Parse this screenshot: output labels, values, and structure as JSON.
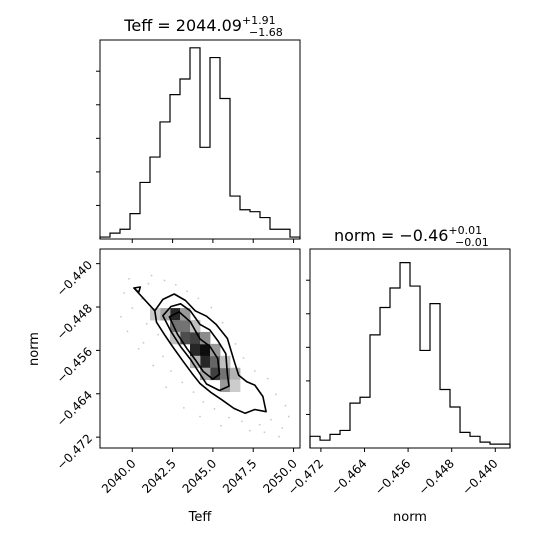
{
  "figure": {
    "panels": [
      "hist-teff",
      "hist-norm",
      "scatter-teff-norm"
    ]
  },
  "chart_data": [
    {
      "type": "histogram",
      "panel": "hist-teff",
      "title": "Teff = 2044.09",
      "title_sup": "+1.91",
      "title_sub": "−1.68",
      "xlim": [
        2038.0,
        2050.4
      ],
      "ylim": [
        0,
        1
      ],
      "bin_edges": [
        2038.0,
        2038.62,
        2039.24,
        2039.86,
        2040.48,
        2041.1,
        2041.72,
        2042.34,
        2042.96,
        2043.58,
        2044.2,
        2044.82,
        2045.44,
        2046.06,
        2046.68,
        2047.3,
        2047.92,
        2048.54,
        2049.16,
        2049.78,
        2050.4
      ],
      "counts": [
        0.01,
        0.03,
        0.05,
        0.13,
        0.29,
        0.42,
        0.6,
        0.74,
        0.82,
        0.98,
        0.47,
        0.93,
        0.72,
        0.22,
        0.15,
        0.14,
        0.11,
        0.05,
        0.05,
        0.01
      ],
      "xticks": [
        2040.0,
        2042.5,
        2045.0,
        2047.5,
        2050.0
      ],
      "xtick_labels_shown": false,
      "yticks": [
        0.2,
        0.4,
        0.6,
        0.8,
        1.0
      ],
      "ytick_labels_shown": false
    },
    {
      "type": "histogram",
      "panel": "hist-norm",
      "title": "norm = −0.46",
      "title_sup": "+0.01",
      "title_sub": "−0.01",
      "xlabel": "norm",
      "xlim": [
        -0.474,
        -0.4373
      ],
      "ylim": [
        0,
        1
      ],
      "bin_edges": [
        -0.474,
        -0.47216,
        -0.47033,
        -0.46849,
        -0.46666,
        -0.46482,
        -0.46299,
        -0.46115,
        -0.45932,
        -0.45748,
        -0.45565,
        -0.45381,
        -0.45198,
        -0.45014,
        -0.44831,
        -0.44647,
        -0.44464,
        -0.4428,
        -0.44097,
        -0.43913,
        -0.4373
      ],
      "counts": [
        0.06,
        0.04,
        0.07,
        0.09,
        0.23,
        0.26,
        0.58,
        0.72,
        0.82,
        0.95,
        0.83,
        0.5,
        0.74,
        0.3,
        0.21,
        0.08,
        0.06,
        0.03,
        0.02,
        0.02
      ],
      "xticks": [
        -0.472,
        -0.464,
        -0.456,
        -0.448,
        -0.44
      ],
      "xtick_labels": [
        "−0.472",
        "−0.464",
        "−0.456",
        "−0.448",
        "−0.440"
      ],
      "yticks": [
        0.2,
        0.4,
        0.6,
        0.8,
        1.0
      ],
      "ytick_labels_shown": false
    },
    {
      "type": "contour-density",
      "panel": "scatter-teff-norm",
      "xlabel": "Teff",
      "ylabel": "norm",
      "xlim": [
        2038.0,
        2050.4
      ],
      "ylim": [
        -0.474,
        -0.4373
      ],
      "xticks": [
        2040.0,
        2042.5,
        2045.0,
        2047.5,
        2050.0
      ],
      "xtick_labels": [
        "2040.0",
        "2042.5",
        "2045.0",
        "2047.5",
        "2050.0"
      ],
      "yticks": [
        -0.472,
        -0.464,
        -0.456,
        -0.448,
        -0.44
      ],
      "ytick_labels": [
        "−0.472",
        "−0.464",
        "−0.456",
        "−0.448",
        "−0.440"
      ],
      "correlation": "negative",
      "density_cells": [
        {
          "x": 2042.65,
          "y": -0.4493,
          "v": 0.85
        },
        {
          "x": 2042.65,
          "y": -0.4515,
          "v": 0.55
        },
        {
          "x": 2043.27,
          "y": -0.4515,
          "v": 0.55
        },
        {
          "x": 2043.27,
          "y": -0.4537,
          "v": 0.7
        },
        {
          "x": 2043.89,
          "y": -0.4537,
          "v": 0.75
        },
        {
          "x": 2043.89,
          "y": -0.4559,
          "v": 0.85
        },
        {
          "x": 2044.51,
          "y": -0.4559,
          "v": 0.95
        },
        {
          "x": 2044.51,
          "y": -0.4581,
          "v": 0.85
        },
        {
          "x": 2045.13,
          "y": -0.4581,
          "v": 0.6
        },
        {
          "x": 2045.13,
          "y": -0.4603,
          "v": 0.75
        },
        {
          "x": 2045.75,
          "y": -0.4603,
          "v": 0.55
        },
        {
          "x": 2045.75,
          "y": -0.4625,
          "v": 0.4
        },
        {
          "x": 2042.03,
          "y": -0.4493,
          "v": 0.35
        },
        {
          "x": 2043.27,
          "y": -0.4493,
          "v": 0.4
        },
        {
          "x": 2044.51,
          "y": -0.4537,
          "v": 0.45
        },
        {
          "x": 2045.13,
          "y": -0.4559,
          "v": 0.4
        },
        {
          "x": 2044.51,
          "y": -0.4603,
          "v": 0.35
        },
        {
          "x": 2046.37,
          "y": -0.4603,
          "v": 0.3
        },
        {
          "x": 2043.89,
          "y": -0.4581,
          "v": 0.3
        },
        {
          "x": 2042.65,
          "y": -0.4537,
          "v": 0.25
        },
        {
          "x": 2041.41,
          "y": -0.4493,
          "v": 0.2
        },
        {
          "x": 2046.37,
          "y": -0.4625,
          "v": 0.2
        },
        {
          "x": 2045.75,
          "y": -0.4581,
          "v": 0.25
        },
        {
          "x": 2043.89,
          "y": -0.4515,
          "v": 0.25
        }
      ],
      "contours": [
        {
          "level": "outer",
          "points": [
            [
              2040.1,
              -0.4445
            ],
            [
              2040.5,
              -0.4443
            ],
            [
              2040.4,
              -0.4453
            ],
            [
              2040.1,
              -0.4445
            ],
            [
              2041.4,
              -0.4487
            ],
            [
              2041.9,
              -0.4466
            ],
            [
              2042.6,
              -0.4456
            ],
            [
              2043.3,
              -0.4468
            ],
            [
              2043.9,
              -0.4487
            ],
            [
              2044.6,
              -0.4497
            ],
            [
              2045.2,
              -0.4512
            ],
            [
              2045.9,
              -0.4538
            ],
            [
              2046.3,
              -0.4578
            ],
            [
              2046.6,
              -0.4606
            ],
            [
              2047.1,
              -0.4618
            ],
            [
              2047.6,
              -0.4624
            ],
            [
              2048.1,
              -0.4645
            ],
            [
              2048.3,
              -0.4673
            ],
            [
              2047.6,
              -0.4669
            ],
            [
              2047.0,
              -0.4676
            ],
            [
              2046.3,
              -0.4667
            ],
            [
              2045.6,
              -0.4652
            ],
            [
              2044.9,
              -0.4638
            ],
            [
              2044.2,
              -0.4621
            ],
            [
              2043.7,
              -0.4602
            ],
            [
              2043.1,
              -0.4578
            ],
            [
              2042.5,
              -0.4553
            ],
            [
              2042.0,
              -0.4531
            ],
            [
              2041.5,
              -0.4508
            ],
            [
              2041.4,
              -0.4487
            ]
          ]
        },
        {
          "level": "middle",
          "points": [
            [
              2041.9,
              -0.4496
            ],
            [
              2042.4,
              -0.4479
            ],
            [
              2043.0,
              -0.4474
            ],
            [
              2043.6,
              -0.4487
            ],
            [
              2044.2,
              -0.4512
            ],
            [
              2044.8,
              -0.4522
            ],
            [
              2045.3,
              -0.4542
            ],
            [
              2045.8,
              -0.4566
            ],
            [
              2045.9,
              -0.4604
            ],
            [
              2046.0,
              -0.4626
            ],
            [
              2045.4,
              -0.4634
            ],
            [
              2044.6,
              -0.4622
            ],
            [
              2044.1,
              -0.4599
            ],
            [
              2043.6,
              -0.4576
            ],
            [
              2043.0,
              -0.4553
            ],
            [
              2042.4,
              -0.4525
            ],
            [
              2041.9,
              -0.4496
            ]
          ]
        },
        {
          "level": "inner",
          "points": [
            [
              2042.3,
              -0.4498
            ],
            [
              2042.9,
              -0.4489
            ],
            [
              2043.6,
              -0.4507
            ],
            [
              2044.2,
              -0.4539
            ],
            [
              2044.8,
              -0.4552
            ],
            [
              2045.3,
              -0.4575
            ],
            [
              2045.4,
              -0.4604
            ],
            [
              2045.0,
              -0.4613
            ],
            [
              2044.4,
              -0.4599
            ],
            [
              2043.9,
              -0.4577
            ],
            [
              2043.4,
              -0.4557
            ],
            [
              2042.8,
              -0.453
            ],
            [
              2042.3,
              -0.4498
            ]
          ]
        }
      ],
      "scatter_points": [
        [
          2039.8,
          -0.4428
        ],
        [
          2040.6,
          -0.4465
        ],
        [
          2039.5,
          -0.4454
        ],
        [
          2041.0,
          -0.4437
        ],
        [
          2040.0,
          -0.4482
        ],
        [
          2039.3,
          -0.4498
        ],
        [
          2040.9,
          -0.4511
        ],
        [
          2041.6,
          -0.4531
        ],
        [
          2040.7,
          -0.4546
        ],
        [
          2041.9,
          -0.4571
        ],
        [
          2042.4,
          -0.4598
        ],
        [
          2043.1,
          -0.4619
        ],
        [
          2043.8,
          -0.4637
        ],
        [
          2044.4,
          -0.4655
        ],
        [
          2045.1,
          -0.4668
        ],
        [
          2046.0,
          -0.4684
        ],
        [
          2046.8,
          -0.4691
        ],
        [
          2047.9,
          -0.4697
        ],
        [
          2048.6,
          -0.4688
        ],
        [
          2049.3,
          -0.4703
        ],
        [
          2049.7,
          -0.4682
        ],
        [
          2049.5,
          -0.4662
        ],
        [
          2048.9,
          -0.4641
        ],
        [
          2048.4,
          -0.4612
        ],
        [
          2047.6,
          -0.4598
        ],
        [
          2046.9,
          -0.4574
        ],
        [
          2046.4,
          -0.4548
        ],
        [
          2045.6,
          -0.4509
        ],
        [
          2044.9,
          -0.4481
        ],
        [
          2044.1,
          -0.4464
        ],
        [
          2043.4,
          -0.4451
        ],
        [
          2042.7,
          -0.4439
        ],
        [
          2042.0,
          -0.4431
        ],
        [
          2041.2,
          -0.4422
        ],
        [
          2049.1,
          -0.4719
        ],
        [
          2048.2,
          -0.4711
        ],
        [
          2047.3,
          -0.4708
        ],
        [
          2045.5,
          -0.4699
        ],
        [
          2044.2,
          -0.4682
        ],
        [
          2043.2,
          -0.4666
        ],
        [
          2042.1,
          -0.4628
        ],
        [
          2041.3,
          -0.4588
        ],
        [
          2040.4,
          -0.4557
        ],
        [
          2039.7,
          -0.4525
        ]
      ]
    }
  ]
}
